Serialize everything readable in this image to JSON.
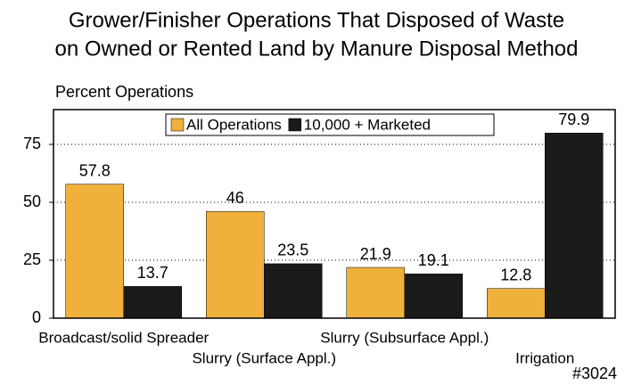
{
  "chart_data": {
    "type": "bar",
    "title": [
      "Grower/Finisher Operations That Disposed of Waste",
      "on Owned or Rented Land by Manure Disposal Method"
    ],
    "y_label": "Percent Operations",
    "footnote": "#3024",
    "categories": [
      "Broadcast/solid Spreader",
      "Slurry (Surface Appl.)",
      "Slurry (Subsurface Appl.)",
      "Irrigation"
    ],
    "series": [
      {
        "name": "All Operations",
        "color": "#f0b03c",
        "values": [
          57.8,
          46,
          21.9,
          12.8
        ]
      },
      {
        "name": "10,000 + Marketed",
        "color": "#1a1a1a",
        "values": [
          13.7,
          23.5,
          19.1,
          79.9
        ]
      }
    ],
    "ylim": [
      0,
      90
    ],
    "yticks": [
      0,
      25,
      50,
      75
    ],
    "grid": true,
    "legend": "top"
  }
}
